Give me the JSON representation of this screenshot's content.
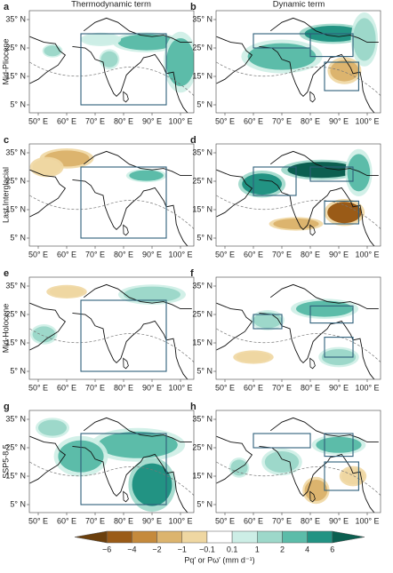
{
  "columns": [
    "Thermodynamic term",
    "Dynamic term"
  ],
  "rows": [
    {
      "label": "Mid-Pliocene",
      "panels": [
        "a",
        "b"
      ]
    },
    {
      "label": "Last Interglacial",
      "panels": [
        "c",
        "d"
      ]
    },
    {
      "label": "Mid-Holocene",
      "panels": [
        "e",
        "f"
      ]
    },
    {
      "label": "SSP5-8.5",
      "panels": [
        "g",
        "h"
      ]
    }
  ],
  "lat_labels": [
    "35° N",
    "25° N",
    "15° N",
    "5° N"
  ],
  "lon_labels": [
    "50° E",
    "60° E",
    "70° E",
    "80° E",
    "90° E",
    "100° E"
  ],
  "colorbar": {
    "ticks": [
      "−6",
      "−4",
      "−2",
      "−1",
      "−0.1",
      "0.1",
      "1",
      "2",
      "4",
      "6"
    ],
    "colors": [
      "#6b3f0c",
      "#9a5b17",
      "#c58a3c",
      "#dcb46e",
      "#efd7a2",
      "#ffffff",
      "#cdeee6",
      "#9dd8ca",
      "#5cbca9",
      "#229383",
      "#0b5f50"
    ],
    "label": "Pq′ or Pω′ (mm d⁻¹)"
  }
}
